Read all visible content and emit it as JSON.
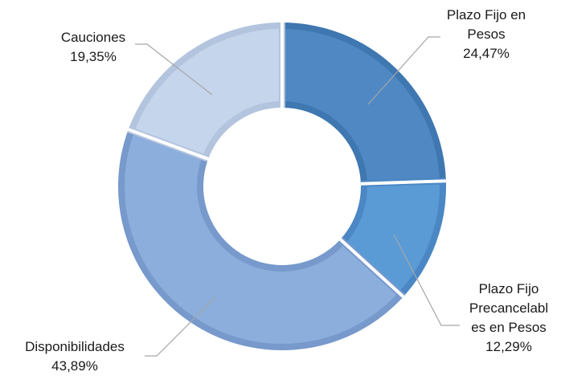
{
  "chart_data": {
    "type": "donut",
    "title": "",
    "legend": "none",
    "series": [
      {
        "slices": [
          {
            "name": "Plazo Fijo en Pesos",
            "value": 24.47,
            "label_lines": [
              "Plazo Fijo en",
              "Pesos",
              "24,47%"
            ],
            "color": "#4f88c2",
            "border": "#3f77b0"
          },
          {
            "name": "Plazo Fijo Precancelables en Pesos",
            "value": 12.29,
            "label_lines": [
              "Plazo Fijo",
              "Precancelabl",
              "es en Pesos",
              "12,29%"
            ],
            "color": "#5b9bd5",
            "border": "#4a87c4"
          },
          {
            "name": "Disponibilidades",
            "value": 43.89,
            "label_lines": [
              "Disponibilidades",
              "43,89%"
            ],
            "color": "#8caedc",
            "border": "#7799cc"
          },
          {
            "name": "Cauciones",
            "value": 19.35,
            "label_lines": [
              "Cauciones",
              "19,35%"
            ],
            "color": "#c5d5ec",
            "border": "#b3c4de"
          }
        ]
      }
    ]
  }
}
